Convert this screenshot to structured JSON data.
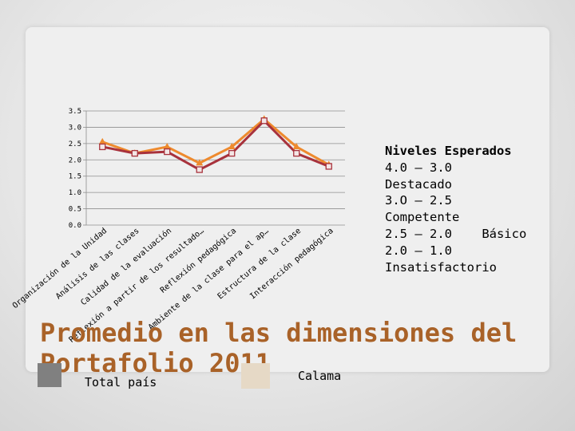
{
  "colors": {
    "series_dark": "#A8323C",
    "series_orange": "#EE8A2E",
    "title": "#A96228",
    "swatch_total": "#808080",
    "swatch_calama": "#E6D9C6"
  },
  "legend_text": {
    "heading": "Niveles Esperados",
    "lines": [
      "4.0 – 3.0",
      "Destacado",
      "3.O – 2.5",
      "Competente",
      "2.5 – 2.0    Básico",
      "2.0 – 1.0",
      "Insatisfactorio"
    ]
  },
  "slide_title": "Promedio en las dimensiones del Portafolio 2011",
  "series_legend": {
    "total_label": "Total país",
    "calama_label": "Calama"
  },
  "chart_data": {
    "type": "line",
    "ylim": [
      0,
      3.5
    ],
    "yticks": [
      "0.0",
      "0.5",
      "1.0",
      "1.5",
      "2.0",
      "2.5",
      "3.0",
      "3.5"
    ],
    "categories": [
      "Organización de la Unidad",
      "Análisis de las clases",
      "Calidad de la evaluación",
      "Reflexión a partir de los resultado…",
      "Reflexión pedagógica",
      "Ambiente de la clase para el ap…",
      "Estructura de la clase",
      "Interacción pedagógica"
    ],
    "series": [
      {
        "values": [
          2.4,
          2.2,
          2.25,
          1.7,
          2.2,
          3.2,
          2.2,
          1.8
        ],
        "color": "#A8323C"
      },
      {
        "values": [
          2.55,
          2.2,
          2.4,
          1.9,
          2.4,
          3.25,
          2.4,
          1.85
        ],
        "color": "#EE8A2E"
      }
    ]
  }
}
